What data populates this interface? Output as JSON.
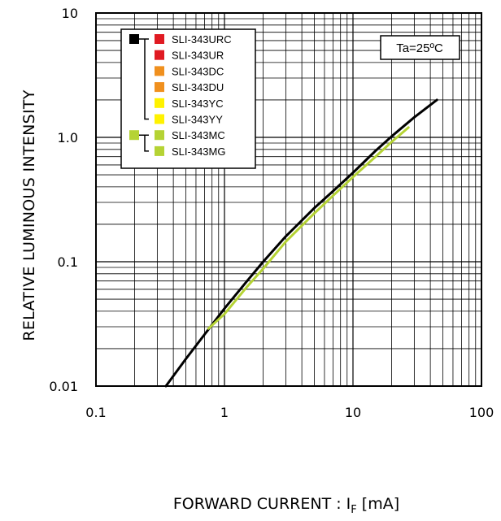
{
  "chart_data": {
    "type": "line",
    "title": "",
    "xlabel": "FORWARD CURRENT : I",
    "xlabel_subscript": "F",
    "xlabel_unit": " [mA]",
    "ylabel": "RELATIVE LUMINOUS INTENSITY",
    "x_scale": "log",
    "y_scale": "log",
    "xlim": [
      0.1,
      100
    ],
    "ylim": [
      0.01,
      10
    ],
    "x_ticks": [
      {
        "value": 0.1,
        "label": "0.1"
      },
      {
        "value": 1,
        "label": "1"
      },
      {
        "value": 10,
        "label": "10"
      },
      {
        "value": 100,
        "label": "100"
      }
    ],
    "y_ticks": [
      {
        "value": 0.01,
        "label": "0.01"
      },
      {
        "value": 0.1,
        "label": "0.1"
      },
      {
        "value": 1,
        "label": "1.0"
      },
      {
        "value": 10,
        "label": "10"
      }
    ],
    "grid": true,
    "annotation": "Ta=25ºC",
    "legend_position": "top-left",
    "legend_groups": [
      {
        "group_color": "#000000",
        "items": [
          {
            "label": "SLI-343URC",
            "color": "#e01a22"
          },
          {
            "label": "SLI-343UR",
            "color": "#e01a22"
          },
          {
            "label": "SLI-343DC",
            "color": "#f0901e"
          },
          {
            "label": "SLI-343DU",
            "color": "#f0901e"
          },
          {
            "label": "SLI-343YC",
            "color": "#fff200"
          },
          {
            "label": "SLI-343YY",
            "color": "#fff200"
          }
        ]
      },
      {
        "group_color": "#b5d334",
        "items": [
          {
            "label": "SLI-343MC",
            "color": "#b5d334"
          },
          {
            "label": "SLI-343MG",
            "color": "#b5d334"
          }
        ]
      }
    ],
    "series": [
      {
        "color": "#000000",
        "x": [
          0.35,
          0.5,
          0.7,
          1,
          1.5,
          2,
          3,
          5,
          7,
          10,
          15,
          20,
          30,
          45
        ],
        "y": [
          0.01,
          0.0165,
          0.026,
          0.042,
          0.07,
          0.1,
          0.16,
          0.27,
          0.37,
          0.52,
          0.78,
          1.02,
          1.45,
          2.0
        ]
      },
      {
        "color": "#b5d334",
        "x": [
          0.75,
          1,
          1.5,
          2,
          3,
          5,
          7,
          10,
          15,
          20,
          27
        ],
        "y": [
          0.029,
          0.038,
          0.063,
          0.088,
          0.145,
          0.245,
          0.34,
          0.48,
          0.7,
          0.92,
          1.2
        ]
      }
    ]
  }
}
